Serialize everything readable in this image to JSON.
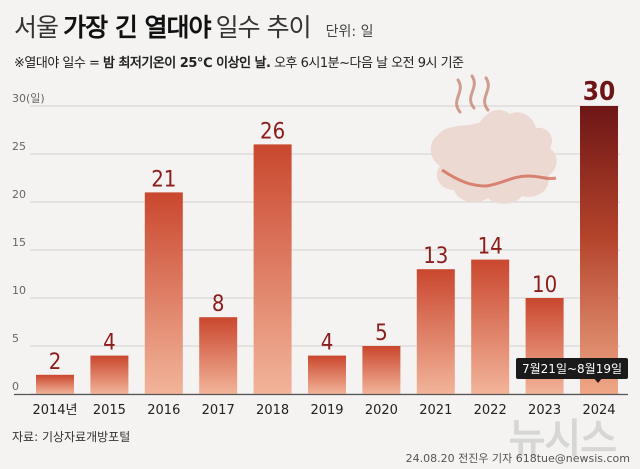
{
  "title": {
    "part1": "서울",
    "part2": "가장 긴 열대야",
    "part3": "일수 추이",
    "unit": "단위: 일"
  },
  "note": {
    "prefix": "※열대야 일수 = ",
    "bold": "밤 최저기온이 25℃ 이상인 날.",
    "suffix": " 오후 6시1분~다음 날 오전 9시 기준"
  },
  "source": "자료: 기상자료개방포털",
  "byline": "24.08.20 전진우 기자 618tue@newsis.com",
  "watermark": "뉴시스",
  "period_label": "7월21일~8월19일",
  "colors": {
    "bar_top": "#c9472e",
    "bar_bottom": "#f2b49a",
    "highlight_top": "#6e1616",
    "highlight_bottom": "#f0a786",
    "label": "#8b1d1d",
    "label_highlight": "#6e1616"
  },
  "chart_data": {
    "type": "bar",
    "categories": [
      "2014년",
      "2015",
      "2016",
      "2017",
      "2018",
      "2019",
      "2020",
      "2021",
      "2022",
      "2023",
      "2024"
    ],
    "values": [
      2,
      4,
      21,
      8,
      26,
      4,
      5,
      13,
      14,
      10,
      30
    ],
    "y_ticks": [
      "0",
      "5",
      "10",
      "15",
      "20",
      "25",
      "30(일)"
    ],
    "ylim": [
      0,
      30
    ],
    "grid": true,
    "highlight_index": 10
  }
}
